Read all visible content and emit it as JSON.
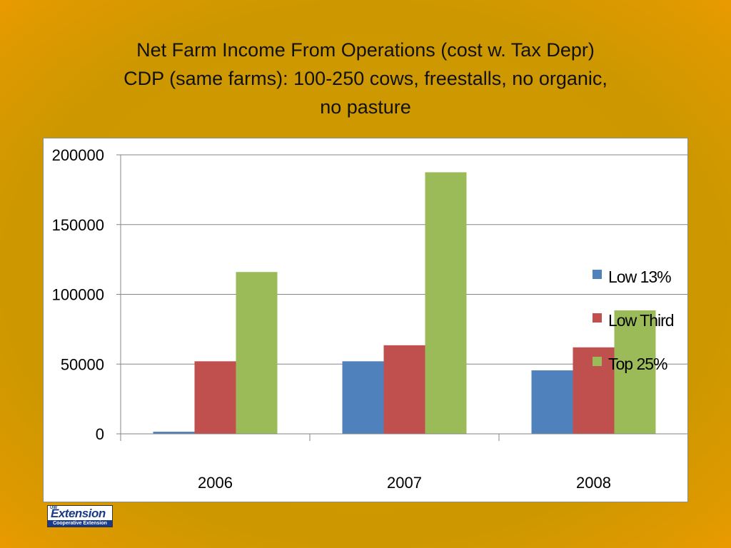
{
  "title_lines": [
    "Net Farm Income From Operations (cost w. Tax Depr)",
    "CDP (same farms):  100-250 cows, freestalls, no organic,",
    "no pasture"
  ],
  "logo": {
    "top_text": "UW",
    "main_text": "Extension",
    "bottom_text": "Cooperative Extension"
  },
  "colors": {
    "low13": "#4f81bd",
    "lowthird": "#c0504d",
    "top25": "#9bbb59"
  },
  "chart_data": {
    "type": "bar",
    "title": "Net Farm Income From Operations (cost w. Tax Depr) CDP (same farms):  100-250 cows, freestalls, no organic, no pasture",
    "categories": [
      "2006",
      "2007",
      "2008"
    ],
    "series": [
      {
        "name": "Low 13%",
        "color": "#4f81bd",
        "values": [
          1500,
          52000,
          45500
        ]
      },
      {
        "name": "Low Third",
        "color": "#c0504d",
        "values": [
          52000,
          63500,
          62000
        ]
      },
      {
        "name": "Top 25%",
        "color": "#9bbb59",
        "values": [
          116000,
          187500,
          88500
        ]
      }
    ],
    "ylim": [
      0,
      200000
    ],
    "yticks": [
      "0",
      "50000",
      "100000",
      "150000",
      "200000"
    ],
    "xlabel": "",
    "ylabel": "",
    "grid": true,
    "legend": "right"
  }
}
